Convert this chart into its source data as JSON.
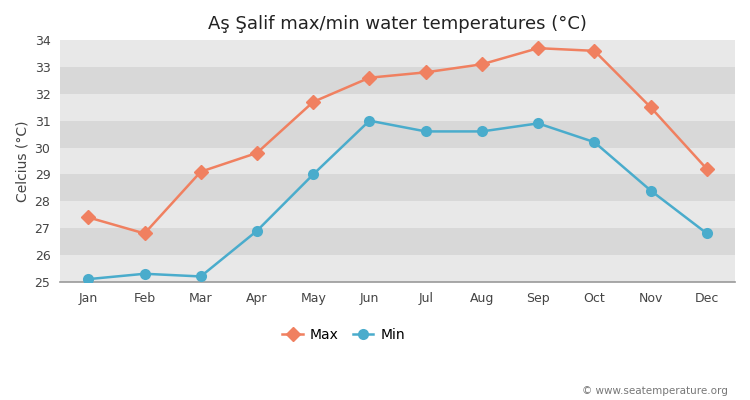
{
  "title": "Aş Şalif max/min water temperatures (°C)",
  "ylabel": "Celcius (°C)",
  "months": [
    "Jan",
    "Feb",
    "Mar",
    "Apr",
    "May",
    "Jun",
    "Jul",
    "Aug",
    "Sep",
    "Oct",
    "Nov",
    "Dec"
  ],
  "max_values": [
    27.4,
    26.8,
    29.1,
    29.8,
    31.7,
    32.6,
    32.8,
    33.1,
    33.7,
    33.6,
    31.5,
    29.2
  ],
  "min_values": [
    25.1,
    25.3,
    25.2,
    26.9,
    29.0,
    31.0,
    30.6,
    30.6,
    30.9,
    30.2,
    28.4,
    26.8
  ],
  "max_color": "#f08060",
  "min_color": "#4aaccc",
  "ylim_min": 25,
  "ylim_max": 34,
  "yticks": [
    25,
    26,
    27,
    28,
    29,
    30,
    31,
    32,
    33,
    34
  ],
  "band_colors": [
    "#e8e8e8",
    "#d8d8d8"
  ],
  "fig_bg_color": "#ffffff",
  "grid_line_color": "#cccccc",
  "legend_max_label": "Max",
  "legend_min_label": "Min",
  "watermark": "© www.seatemperature.org",
  "title_fontsize": 13,
  "label_fontsize": 10,
  "tick_fontsize": 9,
  "legend_fontsize": 10
}
